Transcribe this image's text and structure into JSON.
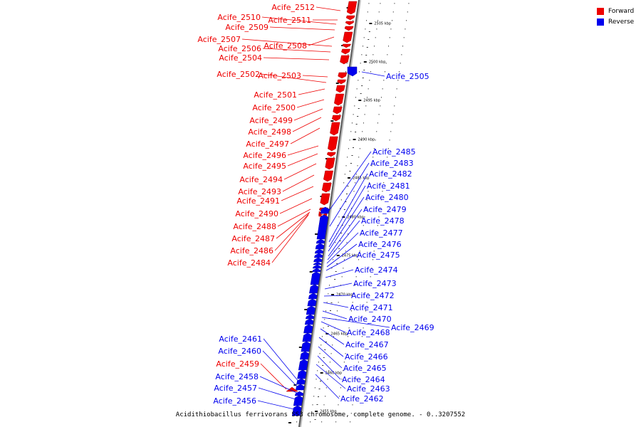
{
  "legend": {
    "forward_label": "Forward",
    "reverse_label": "Reverse",
    "forward_color": "#ee0000",
    "reverse_color": "#0000ee"
  },
  "caption": "Acidithiobacillus ferrivorans SS3 chromosome, complete genome. - 0..3207552",
  "ticks": [
    {
      "kbp": 2505,
      "label": "2505 kbp"
    },
    {
      "kbp": 2500,
      "label": "2500 kbp"
    },
    {
      "kbp": 2495,
      "label": "2495 kbp"
    },
    {
      "kbp": 2490,
      "label": "2490 kbp"
    },
    {
      "kbp": 2485,
      "label": "2485 kbp"
    },
    {
      "kbp": 2480,
      "label": "2480 kbp"
    },
    {
      "kbp": 2475,
      "label": "2475 kbp"
    },
    {
      "kbp": 2470,
      "label": "2470 kbp"
    },
    {
      "kbp": 2465,
      "label": "2465 kbp"
    },
    {
      "kbp": 2460,
      "label": "2460 kbp"
    },
    {
      "kbp": 2455,
      "label": "2455 kbp"
    }
  ],
  "genes": [
    {
      "name": "Acife_2512",
      "strand": "forward"
    },
    {
      "name": "Acife_2511",
      "strand": "forward"
    },
    {
      "name": "Acife_2510",
      "strand": "forward"
    },
    {
      "name": "Acife_2509",
      "strand": "forward"
    },
    {
      "name": "Acife_2508",
      "strand": "forward"
    },
    {
      "name": "Acife_2507",
      "strand": "forward"
    },
    {
      "name": "Acife_2506",
      "strand": "forward"
    },
    {
      "name": "Acife_2504",
      "strand": "forward"
    },
    {
      "name": "Acife_2505",
      "strand": "reverse"
    },
    {
      "name": "Acife_2503",
      "strand": "forward"
    },
    {
      "name": "Acife_2502",
      "strand": "forward"
    },
    {
      "name": "Acife_2501",
      "strand": "forward"
    },
    {
      "name": "Acife_2500",
      "strand": "forward"
    },
    {
      "name": "Acife_2499",
      "strand": "forward"
    },
    {
      "name": "Acife_2498",
      "strand": "forward"
    },
    {
      "name": "Acife_2497",
      "strand": "forward"
    },
    {
      "name": "Acife_2496",
      "strand": "forward"
    },
    {
      "name": "Acife_2495",
      "strand": "forward"
    },
    {
      "name": "Acife_2494",
      "strand": "forward"
    },
    {
      "name": "Acife_2493",
      "strand": "forward"
    },
    {
      "name": "Acife_2491",
      "strand": "forward"
    },
    {
      "name": "Acife_2490",
      "strand": "forward"
    },
    {
      "name": "Acife_2488",
      "strand": "forward"
    },
    {
      "name": "Acife_2487",
      "strand": "forward"
    },
    {
      "name": "Acife_2486",
      "strand": "forward"
    },
    {
      "name": "Acife_2484",
      "strand": "forward"
    },
    {
      "name": "Acife_2485",
      "strand": "reverse"
    },
    {
      "name": "Acife_2483",
      "strand": "reverse"
    },
    {
      "name": "Acife_2482",
      "strand": "reverse"
    },
    {
      "name": "Acife_2481",
      "strand": "reverse"
    },
    {
      "name": "Acife_2480",
      "strand": "reverse"
    },
    {
      "name": "Acife_2479",
      "strand": "reverse"
    },
    {
      "name": "Acife_2478",
      "strand": "reverse"
    },
    {
      "name": "Acife_2477",
      "strand": "reverse"
    },
    {
      "name": "Acife_2476",
      "strand": "reverse"
    },
    {
      "name": "Acife_2475",
      "strand": "reverse"
    },
    {
      "name": "Acife_2474",
      "strand": "reverse"
    },
    {
      "name": "Acife_2473",
      "strand": "reverse"
    },
    {
      "name": "Acife_2472",
      "strand": "reverse"
    },
    {
      "name": "Acife_2471",
      "strand": "reverse"
    },
    {
      "name": "Acife_2470",
      "strand": "reverse"
    },
    {
      "name": "Acife_2469",
      "strand": "reverse"
    },
    {
      "name": "Acife_2468",
      "strand": "reverse"
    },
    {
      "name": "Acife_2467",
      "strand": "reverse"
    },
    {
      "name": "Acife_2466",
      "strand": "reverse"
    },
    {
      "name": "Acife_2465",
      "strand": "reverse"
    },
    {
      "name": "Acife_2464",
      "strand": "reverse"
    },
    {
      "name": "Acife_2463",
      "strand": "reverse"
    },
    {
      "name": "Acife_2462",
      "strand": "reverse"
    },
    {
      "name": "Acife_2461",
      "strand": "reverse"
    },
    {
      "name": "Acife_2460",
      "strand": "reverse"
    },
    {
      "name": "Acife_2459",
      "strand": "forward"
    },
    {
      "name": "Acife_2458",
      "strand": "reverse"
    },
    {
      "name": "Acife_2457",
      "strand": "reverse"
    },
    {
      "name": "Acife_2456",
      "strand": "reverse"
    }
  ]
}
